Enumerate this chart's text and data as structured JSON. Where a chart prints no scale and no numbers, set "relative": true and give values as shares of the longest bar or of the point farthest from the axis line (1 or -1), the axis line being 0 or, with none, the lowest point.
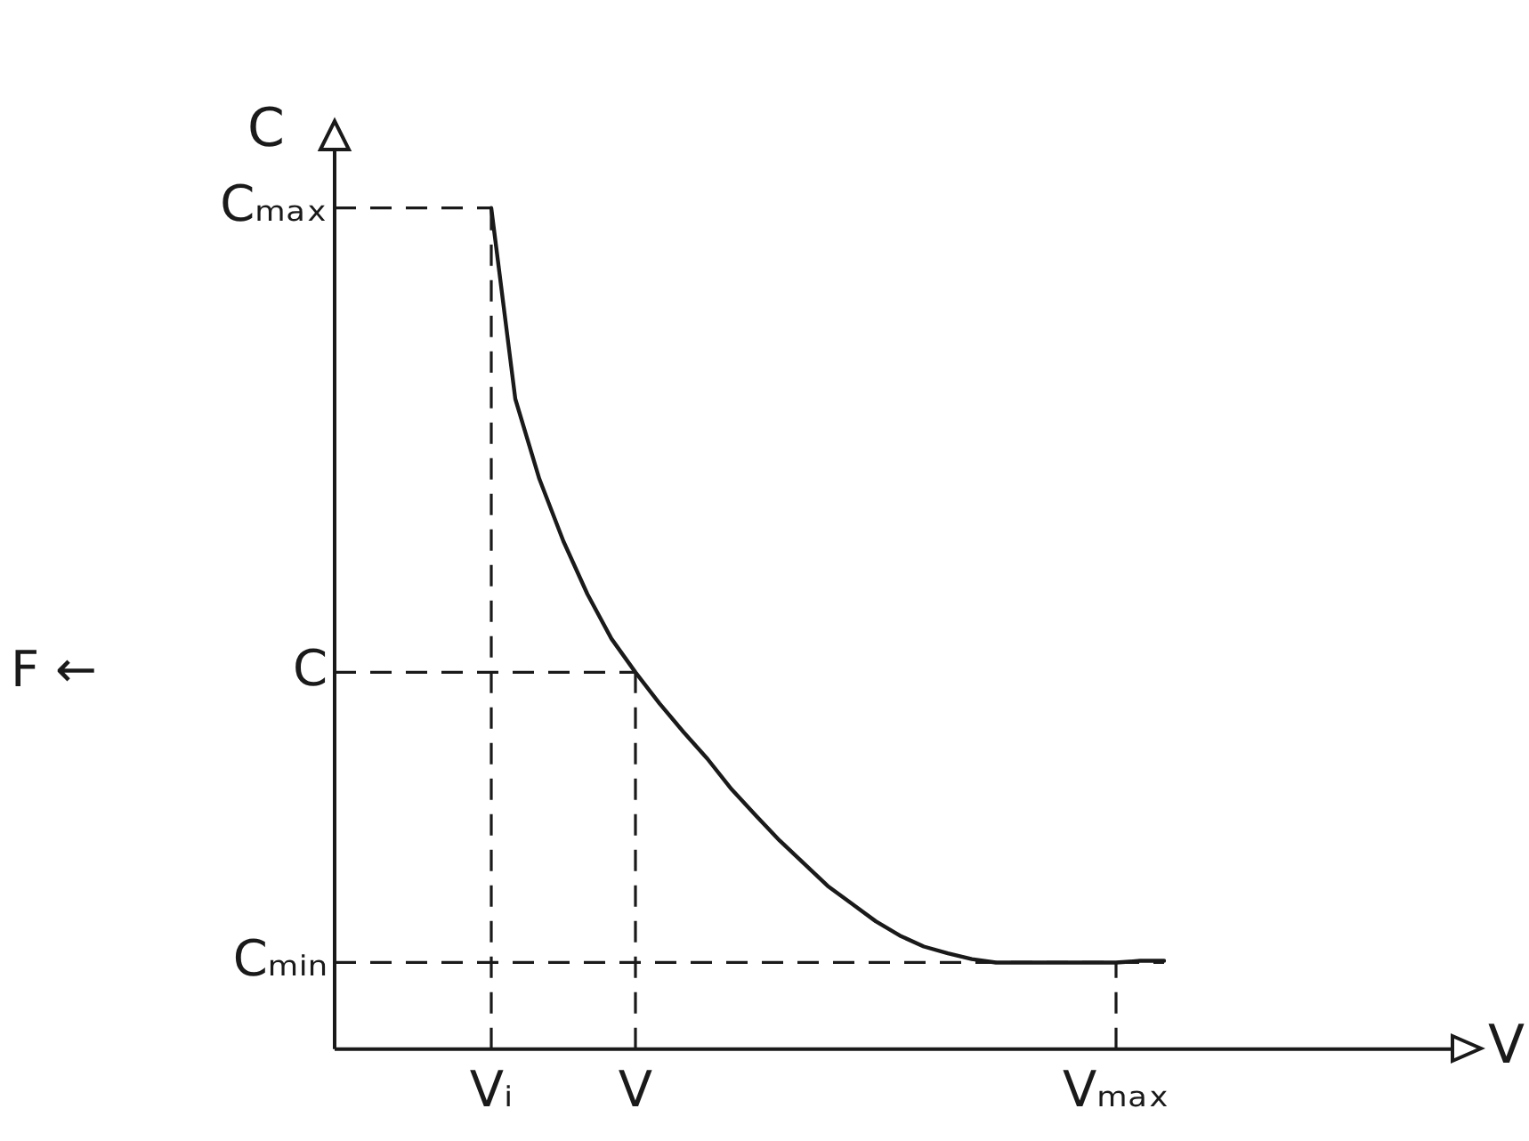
{
  "chart_data": {
    "type": "line",
    "relative": true,
    "ylabel": "C",
    "marker": "none",
    "line_style": "solid",
    "legend": false,
    "categories": [
      "Vᵢ",
      null,
      null,
      null,
      null,
      null,
      "V",
      null,
      null,
      null,
      null,
      null,
      null,
      null,
      null,
      null,
      null,
      null,
      null,
      null,
      null,
      null,
      null,
      null,
      null,
      null,
      "Vₘₐₓ",
      null,
      null
    ],
    "series": [
      {
        "color": "#1a1a1a",
        "values": [
          1,
          0.773,
          0.678,
          0.604,
          0.541,
          0.488,
          0.448,
          0.411,
          0.377,
          0.345,
          0.309,
          0.278,
          0.248,
          0.221,
          0.194,
          0.173,
          0.152,
          0.135,
          0.122,
          0.114,
          0.107,
          0.103,
          0.103,
          0.103,
          0.103,
          0.103,
          0.103,
          0.105,
          0.105
        ]
      }
    ],
    "ref_lines": [
      {
        "axis": "y",
        "value": 1,
        "label": "Cₘₐₓ",
        "line_style": "dashed"
      },
      {
        "axis": "y",
        "value": 0.448,
        "label": "C",
        "line_style": "dashed"
      },
      {
        "axis": "y",
        "value": 0.103,
        "label": "Cₘᵢₙ",
        "line_style": "dashed"
      },
      {
        "axis": "x",
        "value": "Vᵢ",
        "line_style": "dashed"
      },
      {
        "axis": "x",
        "value": "V",
        "line_style": "dashed"
      },
      {
        "axis": "x",
        "value": "Vₘₐₓ",
        "line_style": "dashed"
      }
    ],
    "annotations": [
      "F ←",
      "V"
    ]
  }
}
